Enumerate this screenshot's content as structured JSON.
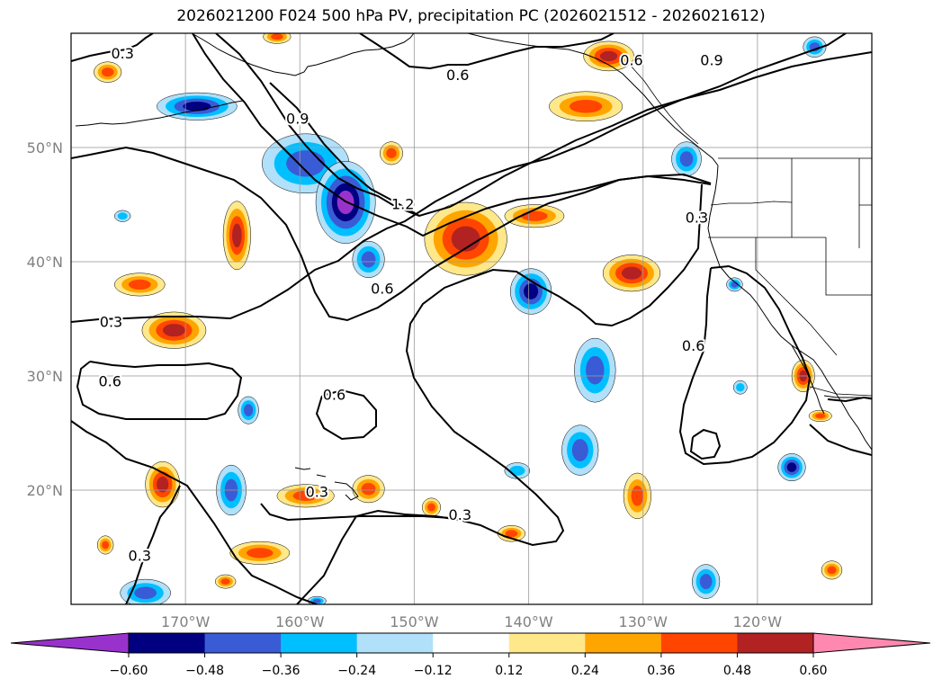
{
  "title": "2026021200 F024 500 hPa PV, precipitation PC (2026021512 - 2026021612)",
  "map": {
    "lon_range": [
      -180,
      -110
    ],
    "lat_range": [
      10,
      60
    ],
    "lon_ticks": [
      {
        "lon": -170,
        "label": "170°W"
      },
      {
        "lon": -160,
        "label": "160°W"
      },
      {
        "lon": -150,
        "label": "150°W"
      },
      {
        "lon": -140,
        "label": "140°W"
      },
      {
        "lon": -130,
        "label": "130°W"
      },
      {
        "lon": -120,
        "label": "120°W"
      }
    ],
    "lat_ticks": [
      {
        "lat": 20,
        "label": "20°N"
      },
      {
        "lat": 30,
        "label": "30°N"
      },
      {
        "lat": 40,
        "label": "40°N"
      },
      {
        "lat": 50,
        "label": "50°N"
      }
    ],
    "grid": true,
    "contour_labels": [
      {
        "text": "0.3",
        "lon": -175.5,
        "lat": 58.2
      },
      {
        "text": "0.6",
        "lon": -146.2,
        "lat": 56.3
      },
      {
        "text": "0.9",
        "lon": -160.2,
        "lat": 52.5
      },
      {
        "text": "1.2",
        "lon": -151.0,
        "lat": 45.0
      },
      {
        "text": "0.6",
        "lon": -131.0,
        "lat": 57.6
      },
      {
        "text": "0.9",
        "lon": -124.0,
        "lat": 57.6
      },
      {
        "text": "0.3",
        "lon": -125.3,
        "lat": 43.8
      },
      {
        "text": "0.6",
        "lon": -152.8,
        "lat": 37.6
      },
      {
        "text": "0.3",
        "lon": -176.5,
        "lat": 34.7
      },
      {
        "text": "0.6",
        "lon": -176.6,
        "lat": 29.5
      },
      {
        "text": "0.6",
        "lon": -157.0,
        "lat": 28.3
      },
      {
        "text": "0.6",
        "lon": -125.6,
        "lat": 32.6
      },
      {
        "text": "0.3",
        "lon": -158.5,
        "lat": 19.8
      },
      {
        "text": "0.3",
        "lon": -146.0,
        "lat": 17.8
      },
      {
        "text": "0.3",
        "lon": -174.0,
        "lat": 14.2
      }
    ],
    "precip_blobs": [
      {
        "lon": -176.8,
        "lat": 56.6,
        "rx": 1.2,
        "ry": 0.9,
        "value": 0.42
      },
      {
        "lon": -169.0,
        "lat": 53.6,
        "rx": 3.5,
        "ry": 1.2,
        "value": -0.5
      },
      {
        "lon": -159.5,
        "lat": 48.6,
        "rx": 3.8,
        "ry": 2.6,
        "value": -0.45
      },
      {
        "lon": -156.0,
        "lat": 45.2,
        "rx": 2.6,
        "ry": 3.6,
        "value": -0.62
      },
      {
        "lon": -154.0,
        "lat": 40.2,
        "rx": 1.4,
        "ry": 1.6,
        "value": -0.36
      },
      {
        "lon": -165.5,
        "lat": 42.3,
        "rx": 1.2,
        "ry": 3.0,
        "value": 0.5
      },
      {
        "lon": -152.0,
        "lat": 49.5,
        "rx": 1.0,
        "ry": 1.0,
        "value": 0.4
      },
      {
        "lon": -145.5,
        "lat": 42.0,
        "rx": 3.6,
        "ry": 3.2,
        "value": 0.5
      },
      {
        "lon": -139.5,
        "lat": 44.0,
        "rx": 2.6,
        "ry": 1.0,
        "value": 0.38
      },
      {
        "lon": -174.0,
        "lat": 38.0,
        "rx": 2.2,
        "ry": 1.0,
        "value": 0.4
      },
      {
        "lon": -171.0,
        "lat": 34.0,
        "rx": 2.8,
        "ry": 1.6,
        "value": 0.52
      },
      {
        "lon": -175.5,
        "lat": 44.0,
        "rx": 0.7,
        "ry": 0.5,
        "value": -0.3
      },
      {
        "lon": -139.8,
        "lat": 37.4,
        "rx": 1.8,
        "ry": 2.0,
        "value": -0.55
      },
      {
        "lon": -133.0,
        "lat": 58.0,
        "rx": 2.2,
        "ry": 1.3,
        "value": 0.5
      },
      {
        "lon": -135.0,
        "lat": 53.6,
        "rx": 3.2,
        "ry": 1.3,
        "value": 0.42
      },
      {
        "lon": -126.2,
        "lat": 49.0,
        "rx": 1.3,
        "ry": 1.5,
        "value": -0.4
      },
      {
        "lon": -115.0,
        "lat": 58.8,
        "rx": 1.0,
        "ry": 0.9,
        "value": -0.4
      },
      {
        "lon": -131.0,
        "lat": 39.0,
        "rx": 2.5,
        "ry": 1.6,
        "value": 0.48
      },
      {
        "lon": -122.0,
        "lat": 38.0,
        "rx": 0.7,
        "ry": 0.6,
        "value": -0.4
      },
      {
        "lon": -134.2,
        "lat": 30.5,
        "rx": 1.8,
        "ry": 2.8,
        "value": -0.42
      },
      {
        "lon": -135.5,
        "lat": 23.5,
        "rx": 1.6,
        "ry": 2.2,
        "value": -0.4
      },
      {
        "lon": -121.5,
        "lat": 29.0,
        "rx": 0.6,
        "ry": 0.6,
        "value": -0.35
      },
      {
        "lon": -116.0,
        "lat": 30.0,
        "rx": 1.0,
        "ry": 1.4,
        "value": 0.5
      },
      {
        "lon": -114.5,
        "lat": 26.5,
        "rx": 1.0,
        "ry": 0.5,
        "value": 0.38
      },
      {
        "lon": -117.0,
        "lat": 22.0,
        "rx": 1.2,
        "ry": 1.2,
        "value": -0.55
      },
      {
        "lon": -130.5,
        "lat": 19.5,
        "rx": 1.2,
        "ry": 2.0,
        "value": 0.42
      },
      {
        "lon": -113.5,
        "lat": 13.0,
        "rx": 0.9,
        "ry": 0.8,
        "value": 0.42
      },
      {
        "lon": -124.5,
        "lat": 12.0,
        "rx": 1.2,
        "ry": 1.5,
        "value": -0.45
      },
      {
        "lon": -141.0,
        "lat": 21.7,
        "rx": 1.1,
        "ry": 0.7,
        "value": -0.35
      },
      {
        "lon": -141.5,
        "lat": 16.2,
        "rx": 1.2,
        "ry": 0.7,
        "value": 0.42
      },
      {
        "lon": -148.5,
        "lat": 18.5,
        "rx": 0.8,
        "ry": 0.8,
        "value": 0.42
      },
      {
        "lon": -154.0,
        "lat": 20.1,
        "rx": 1.4,
        "ry": 1.2,
        "value": 0.42
      },
      {
        "lon": -159.5,
        "lat": 19.5,
        "rx": 2.5,
        "ry": 1.0,
        "value": 0.42
      },
      {
        "lon": -163.5,
        "lat": 14.5,
        "rx": 2.6,
        "ry": 1.0,
        "value": 0.42
      },
      {
        "lon": -166.5,
        "lat": 12.0,
        "rx": 0.9,
        "ry": 0.6,
        "value": 0.42
      },
      {
        "lon": -172.0,
        "lat": 20.5,
        "rx": 1.5,
        "ry": 2.0,
        "value": 0.5
      },
      {
        "lon": -166.0,
        "lat": 20.0,
        "rx": 1.3,
        "ry": 2.2,
        "value": -0.45
      },
      {
        "lon": -164.5,
        "lat": 27.0,
        "rx": 0.9,
        "ry": 1.2,
        "value": -0.4
      },
      {
        "lon": -177.0,
        "lat": 15.2,
        "rx": 0.7,
        "ry": 0.8,
        "value": 0.42
      },
      {
        "lon": -173.5,
        "lat": 11.0,
        "rx": 2.2,
        "ry": 1.2,
        "value": -0.45
      },
      {
        "lon": -158.5,
        "lat": 10.3,
        "rx": 0.8,
        "ry": 0.4,
        "value": -0.4
      },
      {
        "lon": -162.0,
        "lat": 59.7,
        "rx": 1.2,
        "ry": 0.6,
        "value": 0.42
      }
    ]
  },
  "colorbar": {
    "levels": [
      -0.6,
      -0.48,
      -0.36,
      -0.24,
      -0.12,
      0.12,
      0.24,
      0.36,
      0.48,
      0.6
    ],
    "tick_labels": [
      "−0.60",
      "−0.48",
      "−0.36",
      "−0.24",
      "−0.12",
      "0.12",
      "0.24",
      "0.36",
      "0.48",
      "0.60"
    ],
    "colors": [
      "#9932cc",
      "#000080",
      "#3a5bd6",
      "#00bfff",
      "#b0e0fa",
      "#ffffff",
      "#ffe88a",
      "#ffa500",
      "#ff4500",
      "#b22222",
      "#ff88b0"
    ]
  }
}
